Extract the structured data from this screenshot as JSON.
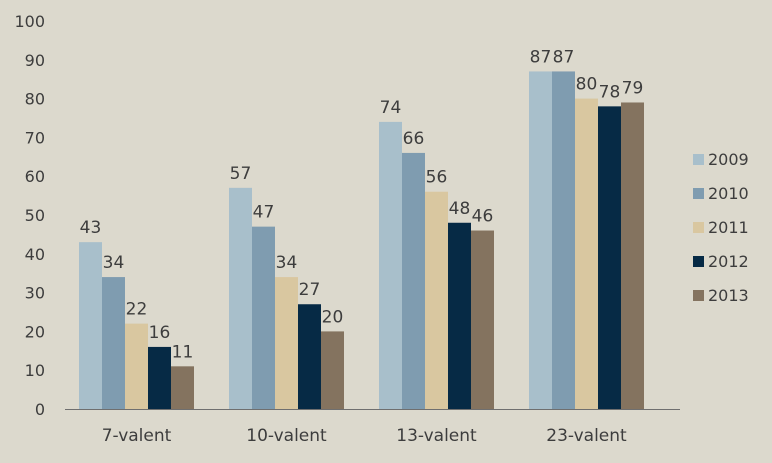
{
  "chart_data": {
    "type": "bar",
    "title": "",
    "xlabel": "",
    "ylabel": "",
    "ylim": [
      0,
      100
    ],
    "yticks": [
      0,
      10,
      20,
      30,
      40,
      50,
      60,
      70,
      80,
      90,
      100
    ],
    "grid": false,
    "legend_position": "right",
    "categories": [
      "7-valent",
      "10-valent",
      "13-valent",
      "23-valent"
    ],
    "series": [
      {
        "name": "2009",
        "color": "#a8bfcb",
        "values": [
          43,
          57,
          74,
          87
        ]
      },
      {
        "name": "2010",
        "color": "#7f9cb0",
        "values": [
          34,
          47,
          66,
          87
        ]
      },
      {
        "name": "2011",
        "color": "#d9c7a0",
        "values": [
          22,
          34,
          56,
          80
        ]
      },
      {
        "name": "2012",
        "color": "#062a45",
        "values": [
          16,
          27,
          48,
          78
        ]
      },
      {
        "name": "2013",
        "color": "#84735f",
        "values": [
          11,
          20,
          46,
          79
        ]
      }
    ]
  }
}
